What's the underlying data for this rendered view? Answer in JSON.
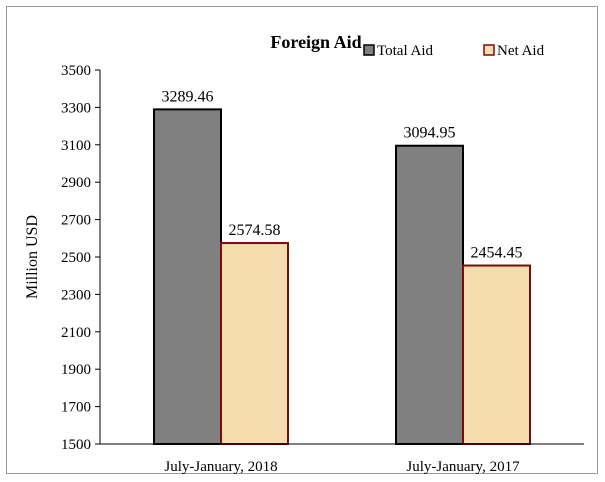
{
  "chart_data": {
    "type": "bar",
    "title": "Foreign Aid",
    "ylabel": "Million USD",
    "xlabel": "",
    "categories": [
      "July-January, 2018",
      "July-January, 2017"
    ],
    "series": [
      {
        "name": "Total Aid",
        "values": [
          3289.46,
          3094.95
        ],
        "fill": "#808080",
        "stroke": "#000000"
      },
      {
        "name": "Net Aid",
        "values": [
          2574.58,
          2454.45
        ],
        "fill": "#f5dcae",
        "stroke": "#7b0c0c"
      }
    ],
    "value_labels": [
      [
        "3289.46",
        "3094.95"
      ],
      [
        "2574.58",
        "2454.45"
      ]
    ],
    "ylim": [
      1500,
      3500
    ],
    "yticks": [
      "1500",
      "1700",
      "1900",
      "2100",
      "2300",
      "2500",
      "2700",
      "2900",
      "3100",
      "3300",
      "3500"
    ],
    "grid": false,
    "legend": "top-right"
  }
}
